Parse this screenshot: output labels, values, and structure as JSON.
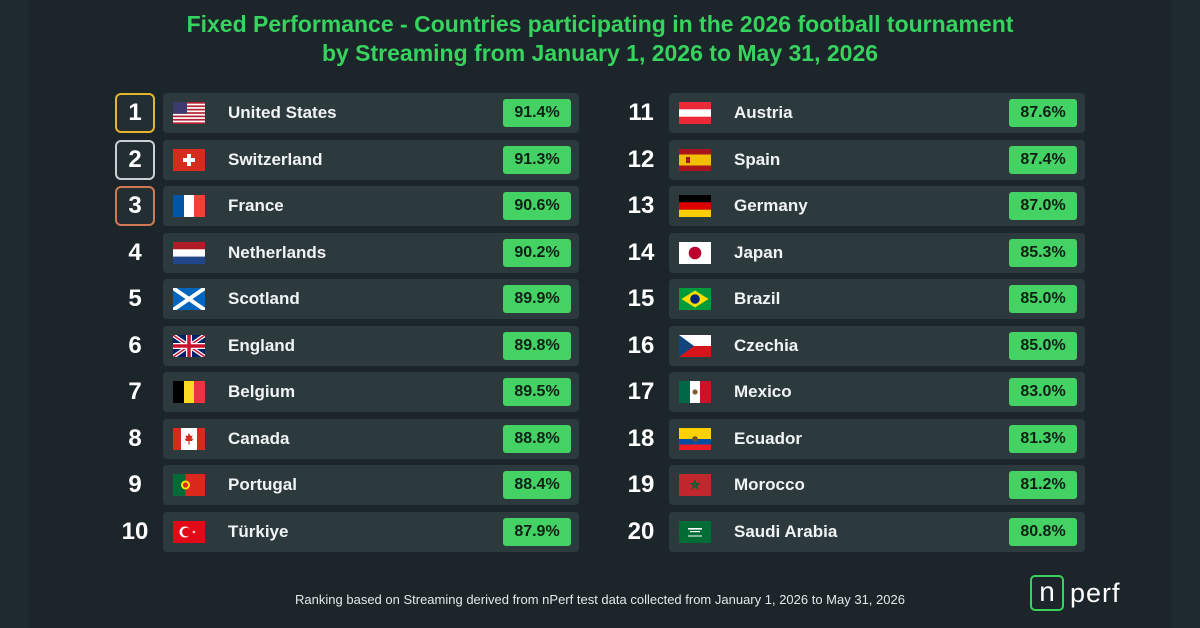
{
  "title": {
    "line1": "Fixed Performance - Countries participating in the 2026 football tournament",
    "line2": "by Streaming from January 1, 2026 to May 31, 2026"
  },
  "footer": "Ranking based on Streaming derived from nPerf test data collected from January 1, 2026 to May 31, 2026",
  "logo": {
    "mark": "n",
    "text": "perf"
  },
  "colors": {
    "title": "#36d45e",
    "badge": "#45d264",
    "gold": "#e6b52e",
    "silver": "#c9cfd2",
    "bronze": "#d07a55"
  },
  "chart_data": {
    "type": "table",
    "columns": [
      "rank",
      "country",
      "value"
    ],
    "rows": [
      {
        "rank": "1",
        "country": "United States",
        "value": "91.4%",
        "flag": "us-flag-icon"
      },
      {
        "rank": "2",
        "country": "Switzerland",
        "value": "91.3%",
        "flag": "ch-flag-icon"
      },
      {
        "rank": "3",
        "country": "France",
        "value": "90.6%",
        "flag": "fr-flag-icon"
      },
      {
        "rank": "4",
        "country": "Netherlands",
        "value": "90.2%",
        "flag": "nl-flag-icon"
      },
      {
        "rank": "5",
        "country": "Scotland",
        "value": "89.9%",
        "flag": "scotland-flag-icon"
      },
      {
        "rank": "6",
        "country": "England",
        "value": "89.8%",
        "flag": "uk-flag-icon"
      },
      {
        "rank": "7",
        "country": "Belgium",
        "value": "89.5%",
        "flag": "be-flag-icon"
      },
      {
        "rank": "8",
        "country": "Canada",
        "value": "88.8%",
        "flag": "ca-flag-icon"
      },
      {
        "rank": "9",
        "country": "Portugal",
        "value": "88.4%",
        "flag": "pt-flag-icon"
      },
      {
        "rank": "10",
        "country": "Türkiye",
        "value": "87.9%",
        "flag": "tr-flag-icon"
      },
      {
        "rank": "11",
        "country": "Austria",
        "value": "87.6%",
        "flag": "at-flag-icon"
      },
      {
        "rank": "12",
        "country": "Spain",
        "value": "87.4%",
        "flag": "es-flag-icon"
      },
      {
        "rank": "13",
        "country": "Germany",
        "value": "87.0%",
        "flag": "de-flag-icon"
      },
      {
        "rank": "14",
        "country": "Japan",
        "value": "85.3%",
        "flag": "jp-flag-icon"
      },
      {
        "rank": "15",
        "country": "Brazil",
        "value": "85.0%",
        "flag": "br-flag-icon"
      },
      {
        "rank": "16",
        "country": "Czechia",
        "value": "85.0%",
        "flag": "cz-flag-icon"
      },
      {
        "rank": "17",
        "country": "Mexico",
        "value": "83.0%",
        "flag": "mx-flag-icon"
      },
      {
        "rank": "18",
        "country": "Ecuador",
        "value": "81.3%",
        "flag": "ec-flag-icon"
      },
      {
        "rank": "19",
        "country": "Morocco",
        "value": "81.2%",
        "flag": "ma-flag-icon"
      },
      {
        "rank": "20",
        "country": "Saudi Arabia",
        "value": "80.8%",
        "flag": "sa-flag-icon"
      }
    ]
  }
}
